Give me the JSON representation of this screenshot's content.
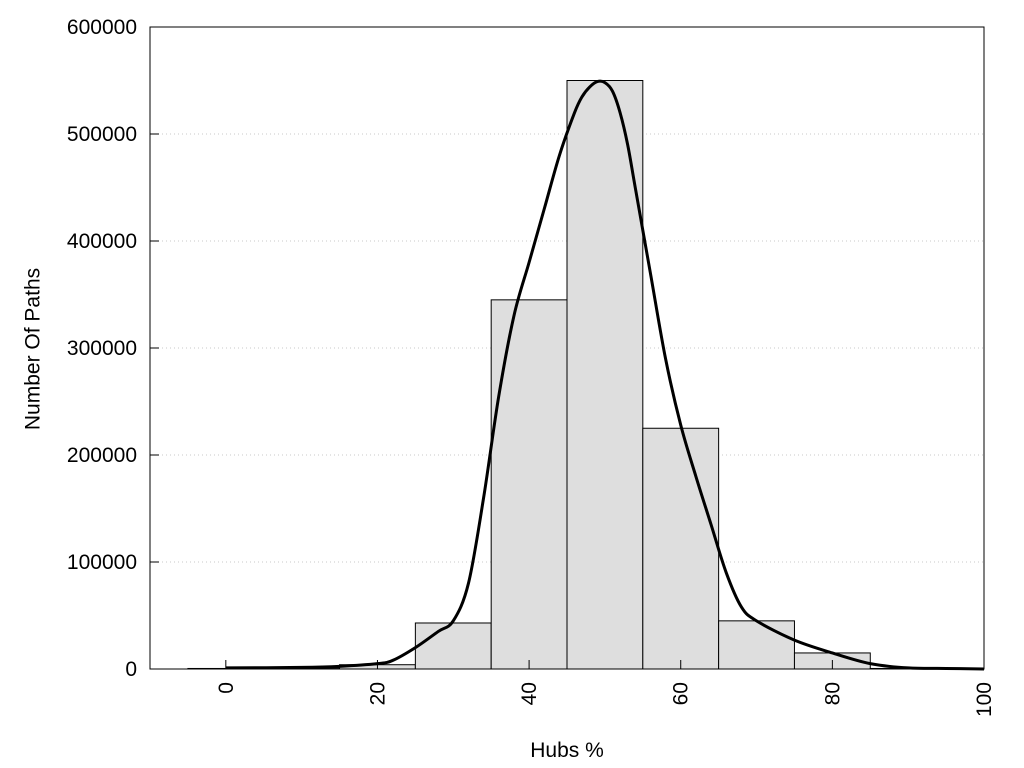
{
  "chart_data": {
    "type": "bar",
    "title": "",
    "xlabel": "Hubs %",
    "ylabel": "Number Of Paths",
    "xlim": [
      -10,
      100
    ],
    "ylim": [
      0,
      600000
    ],
    "x_ticks": [
      0,
      20,
      40,
      60,
      80,
      100
    ],
    "y_ticks": [
      0,
      100000,
      200000,
      300000,
      400000,
      500000,
      600000
    ],
    "grid": "horizontal-dotted",
    "legend": "none",
    "bar_width": 10,
    "bins": [
      {
        "center": 0,
        "value": 500
      },
      {
        "center": 10,
        "value": 1000
      },
      {
        "center": 20,
        "value": 4000
      },
      {
        "center": 30,
        "value": 43000
      },
      {
        "center": 40,
        "value": 345000
      },
      {
        "center": 50,
        "value": 550000
      },
      {
        "center": 60,
        "value": 225000
      },
      {
        "center": 70,
        "value": 45000
      },
      {
        "center": 80,
        "value": 15000
      },
      {
        "center": 90,
        "value": 500
      }
    ],
    "curve": {
      "x": [
        0,
        10,
        15,
        20,
        22,
        25,
        28,
        30,
        32,
        34,
        36,
        38,
        40,
        42,
        44,
        46,
        47,
        48,
        49,
        50,
        51,
        52,
        53,
        54,
        56,
        58,
        60,
        62,
        64,
        66,
        68,
        70,
        75,
        80,
        85,
        90,
        95,
        100
      ],
      "y": [
        1000,
        1500,
        2500,
        5000,
        8000,
        20000,
        35000,
        45000,
        80000,
        160000,
        255000,
        330000,
        380000,
        430000,
        480000,
        520000,
        535000,
        544000,
        549000,
        548000,
        540000,
        520000,
        490000,
        450000,
        370000,
        290000,
        228000,
        180000,
        135000,
        90000,
        58000,
        45000,
        27000,
        15000,
        5000,
        1000,
        500,
        0
      ],
      "color": "#000000"
    },
    "bar_fill": "#dedede",
    "bar_stroke": "#000000"
  }
}
